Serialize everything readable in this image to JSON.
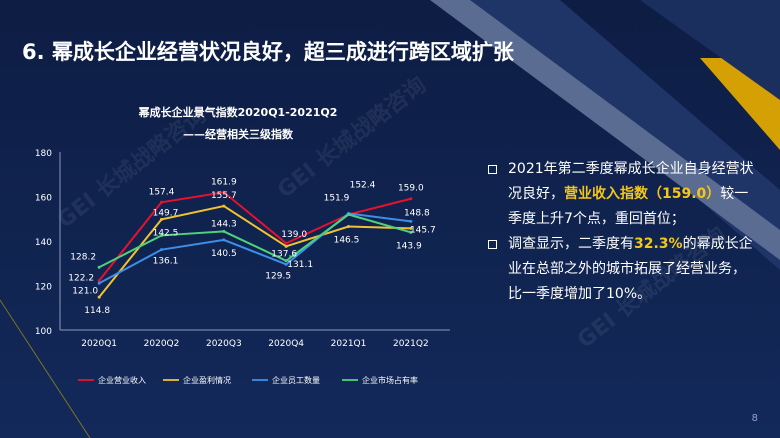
{
  "header": {
    "title": "6. 幂成长企业经营状况良好，超三成进行跨区域扩张"
  },
  "chart_data": {
    "type": "line",
    "title": "幂成长企业景气指数2020Q1-2021Q2",
    "subtitle": "——经营相关三级指数",
    "categories": [
      "2020Q1",
      "2020Q2",
      "2020Q3",
      "2020Q4",
      "2021Q1",
      "2021Q2"
    ],
    "ylim": [
      100,
      180
    ],
    "yticks": [
      100,
      120,
      140,
      160,
      180
    ],
    "grid": false,
    "legend_position": "bottom",
    "series": [
      {
        "name": "企业营业收入",
        "color": "#e8112d",
        "values": [
          122.2,
          157.4,
          161.9,
          139.0,
          151.9,
          159.0
        ]
      },
      {
        "name": "企业盈利情况",
        "color": "#f2c12e",
        "values": [
          114.8,
          149.7,
          155.7,
          137.6,
          146.5,
          145.7
        ]
      },
      {
        "name": "企业员工数量",
        "color": "#3d8ee8",
        "values": [
          121.0,
          136.1,
          140.5,
          129.5,
          152.4,
          148.8
        ]
      },
      {
        "name": "企业市场占有率",
        "color": "#4fd17a",
        "values": [
          128.2,
          142.5,
          144.3,
          131.1,
          151.9,
          143.9
        ]
      }
    ],
    "data_labels": [
      {
        "text": "128.2",
        "cat": 0,
        "value": 128.2
      },
      {
        "text": "122.2",
        "cat": 0,
        "value": 122.2
      },
      {
        "text": "121.0",
        "cat": 0,
        "value": 121.0
      },
      {
        "text": "114.8",
        "cat": 0,
        "value": 114.8
      },
      {
        "text": "157.4",
        "cat": 1,
        "value": 157.4
      },
      {
        "text": "149.7",
        "cat": 1,
        "value": 149.7
      },
      {
        "text": "142.5",
        "cat": 1,
        "value": 142.5
      },
      {
        "text": "136.1",
        "cat": 1,
        "value": 136.1
      },
      {
        "text": "161.9",
        "cat": 2,
        "value": 161.9
      },
      {
        "text": "155.7",
        "cat": 2,
        "value": 155.7
      },
      {
        "text": "144.3",
        "cat": 2,
        "value": 144.3
      },
      {
        "text": "140.5",
        "cat": 2,
        "value": 140.5
      },
      {
        "text": "139.0",
        "cat": 3,
        "value": 139.0
      },
      {
        "text": "137.6",
        "cat": 3,
        "value": 137.6
      },
      {
        "text": "131.1",
        "cat": 3,
        "value": 131.1
      },
      {
        "text": "129.5",
        "cat": 3,
        "value": 129.5
      },
      {
        "text": "151.9",
        "cat": 4,
        "value": 151.9
      },
      {
        "text": "152.4",
        "cat": 4,
        "value": 152.4
      },
      {
        "text": "146.5",
        "cat": 4,
        "value": 146.5
      },
      {
        "text": "159.0",
        "cat": 5,
        "value": 159.0
      },
      {
        "text": "148.8",
        "cat": 5,
        "value": 148.8
      },
      {
        "text": "145.7",
        "cat": 5,
        "value": 145.7
      },
      {
        "text": "143.9",
        "cat": 5,
        "value": 143.9
      }
    ]
  },
  "bullets": [
    {
      "pre": "2021年第二季度幂成长企业自身经营状况良好，",
      "highlight": "营业收入指数（159.0）",
      "post": "较一季度上升7个点，重回首位；"
    },
    {
      "pre": "调查显示，二季度有",
      "highlight": "32.3%",
      "post": "的幂成长企业在总部之外的城市拓展了经营业务，比一季度增加了10%。"
    }
  ],
  "watermarks": [
    "GEI 长城战略咨询",
    "GEI 长城战略咨询",
    "GEI 长城战略咨询"
  ],
  "page_number": "8",
  "colors": {
    "background": "#0f1f45",
    "accent": "#f5c518",
    "stripe": "#5a6c92"
  }
}
